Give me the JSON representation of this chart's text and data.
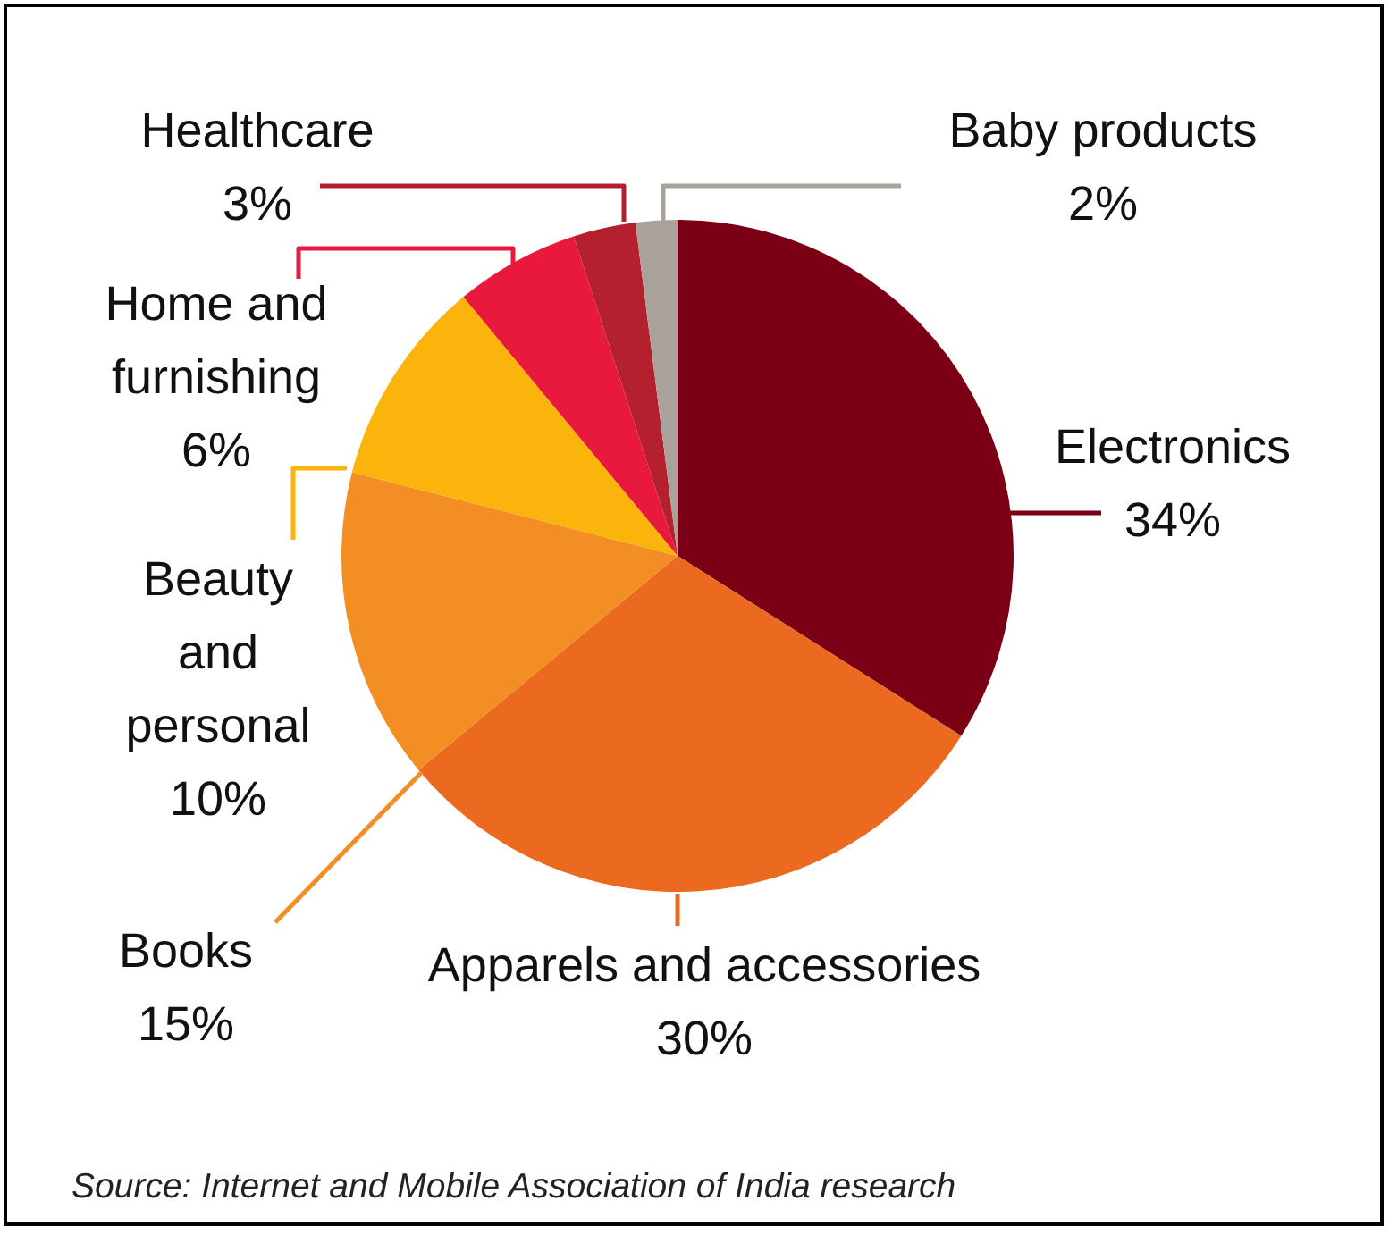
{
  "chart_data": {
    "type": "pie",
    "categories": [
      "Electronics",
      "Apparels and accessories",
      "Books",
      "Beauty and personal",
      "Home and furnishing",
      "Healthcare",
      "Baby products"
    ],
    "values": [
      34,
      30,
      15,
      10,
      6,
      3,
      2
    ],
    "value_labels": [
      "34%",
      "30%",
      "15%",
      "10%",
      "6%",
      "3%",
      "2%"
    ],
    "colors": [
      "#7b0016",
      "#ec6a1f",
      "#f28e23",
      "#fbb40b",
      "#e8193c",
      "#b5202f",
      "#a8a29b"
    ],
    "annotations": [
      "Source: Internet and Mobile Association of India research"
    ]
  }
}
